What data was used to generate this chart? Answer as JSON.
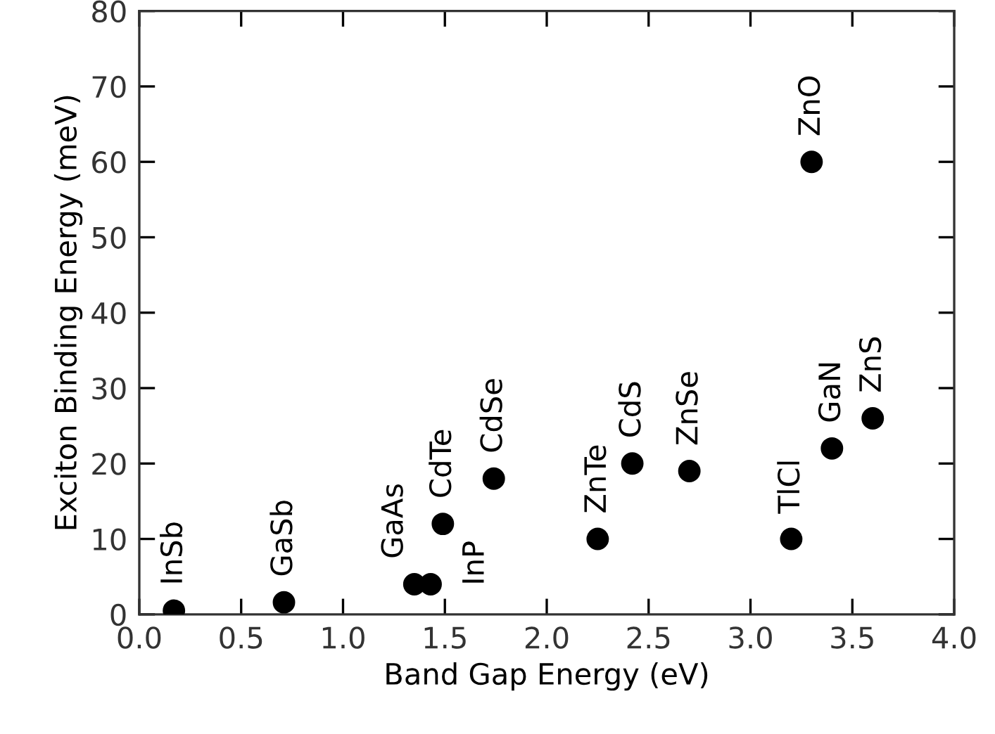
{
  "chart_data": {
    "type": "scatter",
    "xlabel": "Band Gap Energy (eV)",
    "ylabel": "Exciton Binding Energy (meV)",
    "x": [
      0.17,
      0.71,
      1.35,
      1.43,
      1.49,
      1.74,
      2.25,
      2.42,
      2.7,
      3.2,
      3.4,
      3.6,
      3.3
    ],
    "series": [
      {
        "color": "#000000",
        "values": [
          0.5,
          1.6,
          4,
          4,
          12,
          18,
          10,
          20,
          19,
          10,
          22,
          26,
          60
        ]
      }
    ],
    "marker": "circle",
    "grid": false,
    "legend": false,
    "xlim": [
      0,
      4
    ],
    "xticks": [
      {
        "value": 0,
        "label": "0.0"
      },
      0.5,
      {
        "value": 1,
        "label": "1.0"
      },
      1.5,
      {
        "value": 2,
        "label": "2.0"
      },
      2.5,
      {
        "value": 3,
        "label": "3.0"
      },
      3.5,
      {
        "value": 4,
        "label": "4.0"
      }
    ],
    "ylim": [
      0,
      80
    ],
    "yticks": [
      0,
      10,
      20,
      30,
      40,
      50,
      60,
      70,
      80
    ],
    "annotations": [
      {
        "text": "InSb",
        "x": 0.17,
        "y": 0.5
      },
      {
        "text": "GaSb",
        "x": 0.71,
        "y": 1.6
      },
      {
        "text": "GaAs",
        "x": 1.35,
        "y": 4
      },
      {
        "text": "InP",
        "x": 1.43,
        "y": 4
      },
      {
        "text": "CdTe",
        "x": 1.49,
        "y": 12
      },
      {
        "text": "CdSe",
        "x": 1.74,
        "y": 18
      },
      {
        "text": "ZnTe",
        "x": 2.25,
        "y": 10
      },
      {
        "text": "CdS",
        "x": 2.42,
        "y": 20
      },
      {
        "text": "ZnSe",
        "x": 2.7,
        "y": 19
      },
      {
        "text": "TlCl",
        "x": 3.2,
        "y": 10
      },
      {
        "text": "GaN",
        "x": 3.4,
        "y": 22
      },
      {
        "text": "ZnS",
        "x": 3.6,
        "y": 26
      },
      {
        "text": "ZnO",
        "x": 3.3,
        "y": 60
      }
    ]
  }
}
